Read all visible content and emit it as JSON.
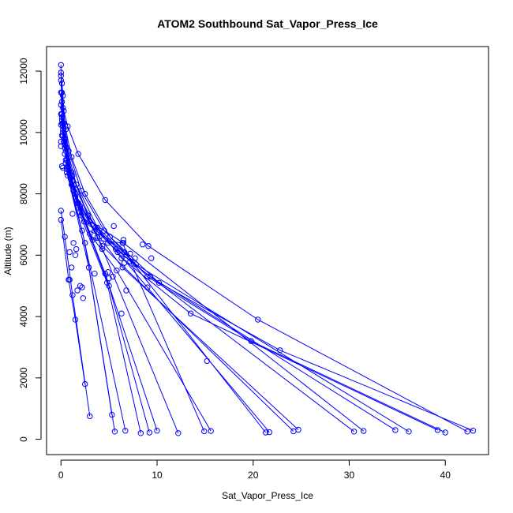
{
  "chart_data": {
    "type": "line",
    "title": "ATOM2 Southbound Sat_Vapor_Press_Ice",
    "xlabel": "Sat_Vapor_Press_Ice",
    "ylabel": "Altitude (m)",
    "xlim": [
      -1.5,
      44.5
    ],
    "ylim": [
      -500,
      12800
    ],
    "x_ticks": [
      0,
      10,
      20,
      30,
      40
    ],
    "y_ticks": [
      0,
      2000,
      4000,
      6000,
      8000,
      10000,
      12000
    ],
    "grid": false,
    "legend": "none",
    "color": "#0000ff",
    "marker": "open-circle",
    "series": [
      {
        "x": [
          0.0,
          0.0,
          0.1,
          0.2,
          0.3,
          0.7,
          1.8,
          4.6,
          9.1,
          20.5,
          42.3
        ],
        "y": [
          12200,
          11950,
          11600,
          11200,
          10700,
          10200,
          9300,
          7800,
          6300,
          3900,
          250
        ]
      },
      {
        "x": [
          0.0,
          0.1,
          0.2,
          0.5,
          1.1,
          2.5,
          5.1,
          10.2,
          22.8,
          42.9
        ],
        "y": [
          11850,
          11300,
          10800,
          10100,
          9200,
          8000,
          6600,
          5100,
          2900,
          280
        ]
      },
      {
        "x": [
          0.0,
          0.1,
          0.3,
          0.8,
          2.1,
          4.5,
          9.0,
          19.8,
          40.0
        ],
        "y": [
          11700,
          11000,
          10300,
          9400,
          8100,
          6800,
          5300,
          3200,
          220
        ]
      },
      {
        "x": [
          0.0,
          0.1,
          0.4,
          1.1,
          2.8,
          6.3,
          13.5,
          39.2
        ],
        "y": [
          11300,
          10600,
          9800,
          8700,
          7300,
          5900,
          4100,
          300
        ]
      },
      {
        "x": [
          0.0,
          0.2,
          0.6,
          1.6,
          3.8,
          7.8,
          36.2
        ],
        "y": [
          10900,
          10300,
          9500,
          8300,
          6900,
          5700,
          250
        ]
      },
      {
        "x": [
          0.0,
          0.2,
          0.7,
          2.0,
          4.9,
          9.3,
          34.8
        ],
        "y": [
          10600,
          9900,
          8900,
          7600,
          6400,
          5300,
          300
        ]
      },
      {
        "x": [
          0.1,
          0.4,
          1.2,
          3.0,
          6.5,
          31.5
        ],
        "y": [
          10500,
          9700,
          8600,
          7100,
          6400,
          270
        ]
      },
      {
        "x": [
          0.1,
          0.4,
          1.3,
          3.6,
          7.2,
          30.5
        ],
        "y": [
          10400,
          9600,
          8300,
          6900,
          5800,
          250
        ]
      },
      {
        "x": [
          0.1,
          0.5,
          1.5,
          3.5,
          6.4,
          24.7
        ],
        "y": [
          10300,
          9400,
          8000,
          6800,
          5600,
          310
        ]
      },
      {
        "x": [
          0.2,
          0.6,
          1.8,
          4.3,
          24.2
        ],
        "y": [
          10200,
          9100,
          7700,
          6300,
          260
        ]
      },
      {
        "x": [
          0.2,
          0.7,
          2.1,
          5.9,
          21.7
        ],
        "y": [
          10100,
          8900,
          7300,
          6100,
          230
        ]
      },
      {
        "x": [
          0.2,
          0.8,
          2.4,
          6.6,
          21.3
        ],
        "y": [
          10000,
          8800,
          7100,
          6100,
          220
        ]
      },
      {
        "x": [
          0.3,
          1.0,
          3.0,
          5.8,
          15.6
        ],
        "y": [
          9800,
          8500,
          6700,
          5500,
          270
        ]
      },
      {
        "x": [
          0.3,
          1.1,
          3.3,
          6.4,
          14.9
        ],
        "y": [
          9700,
          8300,
          6500,
          6400,
          260
        ]
      },
      {
        "x": [
          0.4,
          1.3,
          3.8,
          12.2
        ],
        "y": [
          9500,
          8100,
          6600,
          200
        ]
      },
      {
        "x": [
          0.4,
          1.5,
          4.6,
          10.0
        ],
        "y": [
          9300,
          7900,
          5400,
          280
        ]
      },
      {
        "x": [
          0.5,
          1.7,
          5.0,
          9.2
        ],
        "y": [
          9100,
          7700,
          5000,
          220
        ]
      },
      {
        "x": [
          0.5,
          1.9,
          4.8,
          8.3
        ],
        "y": [
          9000,
          7400,
          5100,
          200
        ]
      },
      {
        "x": [
          0.6,
          2.2,
          6.7
        ],
        "y": [
          8800,
          6800,
          280
        ]
      },
      {
        "x": [
          0.6,
          2.5,
          5.6
        ],
        "y": [
          8700,
          6400,
          250
        ]
      },
      {
        "x": [
          0.7,
          2.9,
          5.3
        ],
        "y": [
          8600,
          5600,
          800
        ]
      },
      {
        "x": [
          0.0,
          0.4,
          1.2,
          3.0
        ],
        "y": [
          7450,
          6600,
          4700,
          750
        ]
      },
      {
        "x": [
          0.0,
          0.8,
          1.5,
          2.5
        ],
        "y": [
          7150,
          5200,
          3900,
          1800
        ]
      }
    ],
    "extra_points": {
      "x": [
        0.0,
        0.0,
        0.1,
        0.0,
        0.2,
        0.1,
        1.2,
        1.3,
        1.1,
        0.9,
        1.6,
        2.0,
        1.7,
        0.9,
        1.5,
        2.2,
        2.3,
        3.5,
        4.0,
        5.5,
        6.8,
        7.7,
        9.0,
        6.3,
        4.3,
        15.2,
        6.6,
        4.9,
        7.2,
        5.7,
        6.8,
        5.4,
        5.0,
        6.5,
        9.4,
        8.5
      ],
      "y": [
        9700,
        9550,
        9900,
        10250,
        8850,
        8900,
        7350,
        6400,
        5600,
        5200,
        6200,
        5000,
        4850,
        6100,
        6000,
        4950,
        4600,
        5400,
        6600,
        6950,
        6000,
        5900,
        4950,
        4100,
        6200,
        2550,
        5750,
        5450,
        6050,
        6200,
        4850,
        5300,
        5250,
        6500,
        5900,
        6350
      ]
    }
  }
}
